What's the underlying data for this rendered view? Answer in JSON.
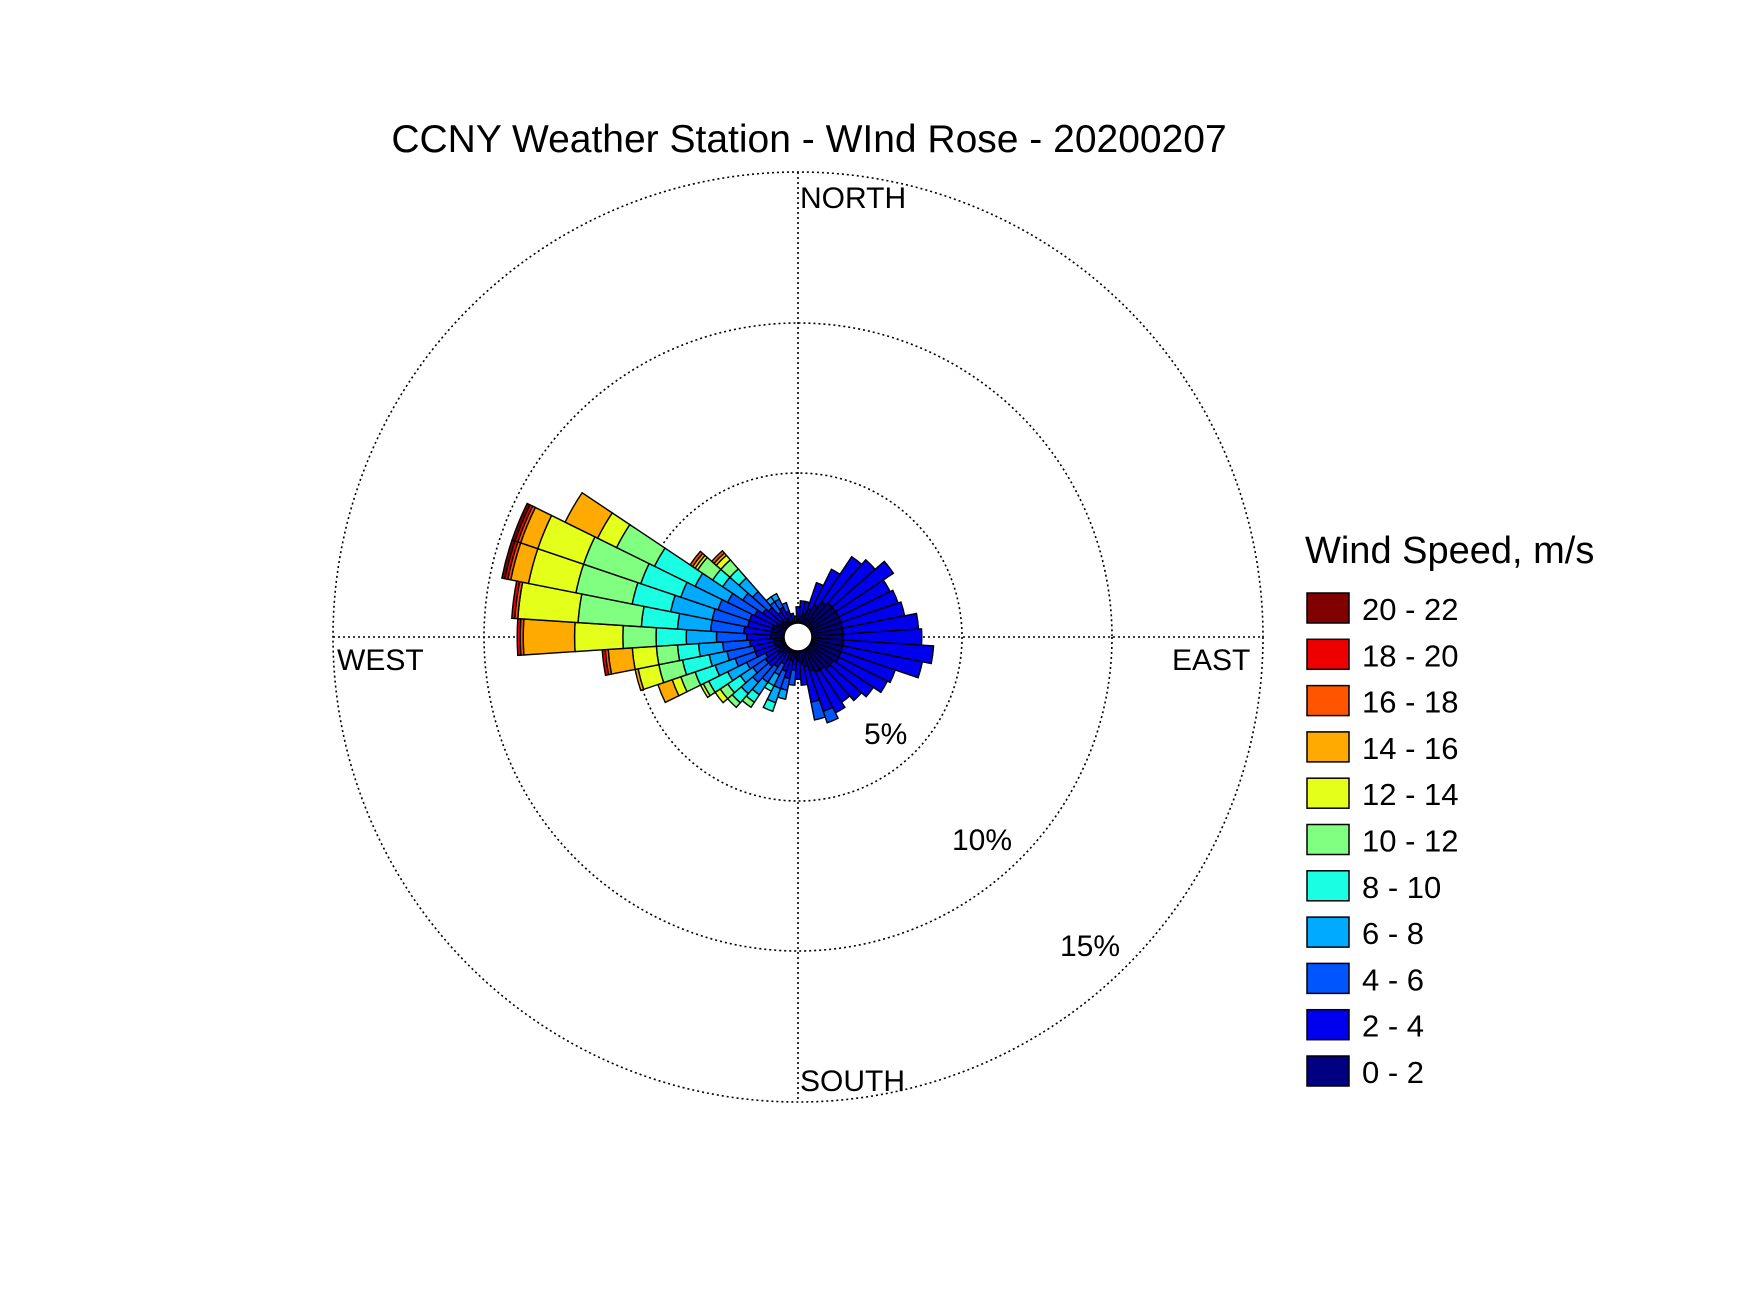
{
  "chart_data": {
    "type": "wind_rose",
    "title": "CCNY Weather Station - WInd Rose - 20200207",
    "direction_labels": {
      "north": "NORTH",
      "east": "EAST",
      "south": "SOUTH",
      "west": "WEST"
    },
    "radial_unit": "percent of observations",
    "radial_ticks": [
      {
        "value": 5,
        "label": "5%"
      },
      {
        "value": 10,
        "label": "10%"
      },
      {
        "value": 15,
        "label": "15%"
      }
    ],
    "radial_max": 15.4,
    "legend": {
      "title": "Wind Speed, m/s",
      "placement": "right",
      "entries": [
        {
          "label": "20 - 22",
          "color": "#800000"
        },
        {
          "label": "18 - 20",
          "color": "#ee0000"
        },
        {
          "label": "16 - 18",
          "color": "#ff5500"
        },
        {
          "label": "14 - 16",
          "color": "#ffaa00"
        },
        {
          "label": "12 - 14",
          "color": "#e4ff1a"
        },
        {
          "label": "10 - 12",
          "color": "#80ff80"
        },
        {
          "label": "8 - 10",
          "color": "#1affe4"
        },
        {
          "label": "6 - 8",
          "color": "#00aaff"
        },
        {
          "label": "4 - 6",
          "color": "#0055ff"
        },
        {
          "label": "2 - 4",
          "color": "#0000ee"
        },
        {
          "label": "0 - 2",
          "color": "#000080"
        }
      ]
    },
    "speed_bins": [
      "0 - 2",
      "2 - 4",
      "4 - 6",
      "6 - 8",
      "8 - 10",
      "10 - 12",
      "12 - 14",
      "14 - 16",
      "16 - 18",
      "18 - 20",
      "20 - 22"
    ],
    "sector_width_deg": 7.5,
    "sectors": [
      {
        "direction_deg": 37.5,
        "cumulative": [
          1.4,
          3.2
        ]
      },
      {
        "direction_deg": 45,
        "cumulative": [
          1.5,
          3.4
        ]
      },
      {
        "direction_deg": 52.5,
        "cumulative": [
          1.5,
          3.8
        ]
      },
      {
        "direction_deg": 60,
        "cumulative": [
          1.5,
          3.4
        ]
      },
      {
        "direction_deg": 67.5,
        "cumulative": [
          1.5,
          3.5
        ]
      },
      {
        "direction_deg": 75,
        "cumulative": [
          1.5,
          3.6
        ]
      },
      {
        "direction_deg": 82.5,
        "cumulative": [
          1.5,
          4.0
        ]
      },
      {
        "direction_deg": 90,
        "cumulative": [
          1.5,
          4.1
        ]
      },
      {
        "direction_deg": 97.5,
        "cumulative": [
          1.5,
          4.5
        ]
      },
      {
        "direction_deg": 105,
        "cumulative": [
          1.5,
          4.2
        ]
      },
      {
        "direction_deg": 112.5,
        "cumulative": [
          1.5,
          3.4
        ]
      },
      {
        "direction_deg": 120,
        "cumulative": [
          1.5,
          3.3
        ]
      },
      {
        "direction_deg": 127.5,
        "cumulative": [
          1.4,
          3.0
        ]
      },
      {
        "direction_deg": 135,
        "cumulative": [
          1.4,
          2.8
        ]
      },
      {
        "direction_deg": 142.5,
        "cumulative": [
          1.3,
          2.6
        ]
      },
      {
        "direction_deg": 150,
        "cumulative": [
          1.3,
          2.8
        ]
      },
      {
        "direction_deg": 157.5,
        "cumulative": [
          1.2,
          2.6,
          3.0
        ]
      },
      {
        "direction_deg": 165,
        "cumulative": [
          1.0,
          2.2,
          2.8
        ]
      },
      {
        "direction_deg": 172.5,
        "cumulative": [
          0.9,
          1.6
        ]
      },
      {
        "direction_deg": 180,
        "cumulative": [
          0.8,
          1.4
        ]
      },
      {
        "direction_deg": 187.5,
        "cumulative": [
          0.7,
          1.1,
          1.6
        ]
      },
      {
        "direction_deg": 195,
        "cumulative": [
          0.8,
          1.4,
          1.8,
          2.1
        ]
      },
      {
        "direction_deg": 202.5,
        "cumulative": [
          0.8,
          1.2,
          1.8,
          2.3,
          2.6
        ]
      },
      {
        "direction_deg": 210,
        "cumulative": [
          0.6,
          1.0,
          1.4,
          1.8,
          2.0
        ]
      },
      {
        "direction_deg": 217.5,
        "cumulative": [
          0.7,
          1.2,
          1.8,
          2.3,
          2.6,
          2.8
        ]
      },
      {
        "direction_deg": 225,
        "cumulative": [
          0.7,
          1.3,
          2.0,
          2.5,
          2.9,
          3.1
        ]
      },
      {
        "direction_deg": 232.5,
        "cumulative": [
          0.8,
          1.3,
          1.8,
          2.3,
          2.8,
          3.1,
          3.3
        ]
      },
      {
        "direction_deg": 240,
        "cumulative": [
          0.7,
          1.2,
          1.9,
          2.6,
          3.3,
          3.5,
          3.6
        ]
      },
      {
        "direction_deg": 247.5,
        "cumulative": [
          0.8,
          1.5,
          2.2,
          2.9,
          3.6,
          4.1,
          4.4,
          4.9
        ]
      },
      {
        "direction_deg": 255,
        "cumulative": [
          0.8,
          1.5,
          2.4,
          3.0,
          3.9,
          4.7,
          5.4,
          5.5
        ]
      },
      {
        "direction_deg": 262.5,
        "cumulative": [
          0.8,
          1.6,
          2.5,
          3.3,
          4.0,
          4.7,
          5.5,
          6.3,
          6.4,
          6.5
        ]
      },
      {
        "direction_deg": 270,
        "cumulative": [
          0.9,
          1.7,
          2.7,
          3.7,
          4.7,
          5.8,
          7.4,
          9.1,
          9.2,
          9.3
        ]
      },
      {
        "direction_deg": 277.5,
        "cumulative": [
          0.9,
          1.8,
          2.9,
          4.0,
          5.2,
          7.3,
          9.3,
          9.3,
          9.4,
          9.5
        ]
      },
      {
        "direction_deg": 285,
        "cumulative": [
          0.9,
          1.7,
          2.9,
          4.3,
          5.6,
          7.5,
          9.1,
          9.7,
          9.8,
          9.9,
          10.0
        ]
      },
      {
        "direction_deg": 292.5,
        "cumulative": [
          0.9,
          1.7,
          2.8,
          4.1,
          5.5,
          7.5,
          9.1,
          9.7,
          9.8,
          9.9,
          10.0
        ]
      },
      {
        "direction_deg": 300,
        "cumulative": [
          0.8,
          1.6,
          2.6,
          3.8,
          5.3,
          6.7,
          7.4,
          8.6
        ]
      },
      {
        "direction_deg": 307.5,
        "cumulative": [
          0.7,
          1.4,
          2.2,
          3.0,
          3.4,
          4.0,
          4.1,
          4.2,
          4.3
        ]
      },
      {
        "direction_deg": 315,
        "cumulative": [
          0.7,
          1.3,
          2.0,
          2.6,
          3.0,
          3.4,
          3.6,
          3.7,
          3.8
        ]
      },
      {
        "direction_deg": 322.5,
        "cumulative": [
          0.6,
          1.0,
          1.4,
          1.6
        ]
      },
      {
        "direction_deg": 330,
        "cumulative": [
          0.7,
          1.1,
          1.4,
          1.6
        ]
      },
      {
        "direction_deg": 337.5,
        "cumulative": [
          0.5,
          0.9,
          1.2
        ]
      },
      {
        "direction_deg": 345,
        "cumulative": [
          0.5,
          0.8
        ]
      },
      {
        "direction_deg": 352.5,
        "cumulative": [
          0.4,
          0.7
        ]
      },
      {
        "direction_deg": 360,
        "cumulative": [
          0.6,
          1.0
        ]
      },
      {
        "direction_deg": 7.5,
        "cumulative": [
          0.7,
          1.2
        ]
      },
      {
        "direction_deg": 15,
        "cumulative": [
          0.8,
          1.2
        ]
      },
      {
        "direction_deg": 22.5,
        "cumulative": [
          1.0,
          1.9
        ]
      },
      {
        "direction_deg": 30,
        "cumulative": [
          1.2,
          2.5
        ]
      }
    ]
  }
}
